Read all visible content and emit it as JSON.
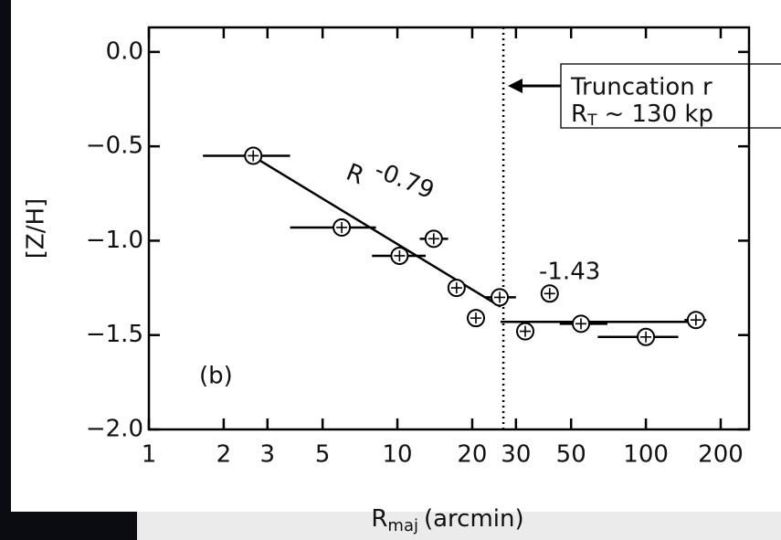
{
  "chart_data": {
    "type": "scatter",
    "y_label": "[Z/H]",
    "x_label": {
      "main": "R",
      "sub": "maj",
      "rest": "(arcmin)"
    },
    "log_x": true,
    "xlim": [
      1,
      260
    ],
    "ylim": [
      -2.0,
      0.13
    ],
    "xticks": [
      1,
      2,
      3,
      5,
      10,
      20,
      30,
      50,
      100,
      200
    ],
    "yticks": [
      {
        "value": 0.0,
        "label": "0.0"
      },
      {
        "value": -0.5,
        "label": "−0.5"
      },
      {
        "value": -1.0,
        "label": "−1.0"
      },
      {
        "value": -1.5,
        "label": "−1.5"
      },
      {
        "value": -2.0,
        "label": "−2.0"
      }
    ],
    "series": [
      {
        "color": "#000000",
        "x": [
          2.63,
          5.97,
          10.2,
          14,
          17.3,
          20.7,
          25.8,
          32.7,
          41,
          54.8,
          100,
          159
        ],
        "values": [
          -0.55,
          -0.93,
          -1.08,
          -0.99,
          -1.25,
          -1.41,
          -1.3,
          -1.48,
          -1.28,
          -1.44,
          -1.51,
          -1.42
        ],
        "xerr_low": [
          1.65,
          3.7,
          7.9,
          12.3,
          null,
          null,
          22.5,
          null,
          null,
          45,
          64,
          143
        ],
        "xerr_high": [
          3.7,
          8.2,
          13,
          16,
          null,
          null,
          30,
          null,
          null,
          70,
          135,
          175
        ]
      }
    ],
    "fit_lines": [
      {
        "x": [
          2.6,
          26
        ],
        "y": [
          -0.55,
          -1.35
        ]
      },
      {
        "x": [
          26,
          160
        ],
        "y": [
          -1.43,
          -1.43
        ]
      }
    ],
    "truncation_x": 26.7,
    "annotations": {
      "slope_base": "R",
      "slope_exp": "-0.79",
      "flat_value": "-1.43",
      "panel": "(b)",
      "box_line1": "Truncation r",
      "box_line2_main": "R",
      "box_line2_sub": "T",
      "box_line2_rest": "~ 130 kp"
    }
  }
}
